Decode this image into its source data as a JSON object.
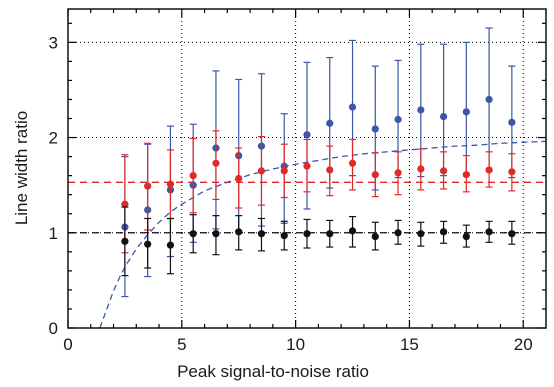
{
  "chart_data": {
    "type": "scatter",
    "title": "",
    "xlabel": "Peak signal-to-noise ratio",
    "ylabel": "Line width ratio",
    "xlim": [
      0,
      21
    ],
    "ylim": [
      0,
      3.35
    ],
    "x_ticks": [
      0,
      5,
      10,
      15,
      20
    ],
    "x_tick_labels": [
      "0",
      "5",
      "10",
      "15",
      "20"
    ],
    "y_ticks": [
      0,
      1,
      2,
      3
    ],
    "y_tick_labels": [
      "0",
      "1",
      "2",
      "3"
    ],
    "grid": true,
    "grid_style": "dotted, at major ticks",
    "legend": "none",
    "x": [
      2.5,
      3.5,
      4.5,
      5.5,
      6.5,
      7.5,
      8.5,
      9.5,
      10.5,
      11.5,
      12.5,
      13.5,
      14.5,
      15.5,
      16.5,
      17.5,
      18.5,
      19.5
    ],
    "series": [
      {
        "color": "#3a57a8",
        "marker": "circle",
        "values": [
          1.06,
          1.24,
          1.45,
          1.5,
          1.89,
          1.81,
          1.91,
          1.7,
          2.03,
          2.15,
          2.32,
          2.09,
          2.19,
          2.29,
          2.22,
          2.27,
          2.4,
          2.16
        ],
        "err_low": [
          0.73,
          0.7,
          0.7,
          0.6,
          0.85,
          0.79,
          0.84,
          0.6,
          0.78,
          0.68,
          0.72,
          0.64,
          0.61,
          0.7,
          0.62,
          0.65,
          0.75,
          0.58
        ],
        "err_high": [
          0.74,
          0.69,
          0.67,
          0.64,
          0.81,
          0.8,
          0.76,
          0.55,
          0.76,
          0.69,
          0.7,
          0.66,
          0.62,
          0.69,
          0.76,
          0.73,
          0.75,
          0.59
        ]
      },
      {
        "color": "#e02a2a",
        "marker": "circle",
        "values": [
          1.3,
          1.49,
          1.51,
          1.6,
          1.73,
          1.57,
          1.65,
          1.65,
          1.7,
          1.66,
          1.73,
          1.61,
          1.63,
          1.67,
          1.65,
          1.61,
          1.66,
          1.64
        ],
        "err_low": [
          0.51,
          0.46,
          0.36,
          0.39,
          0.38,
          0.31,
          0.36,
          0.28,
          0.27,
          0.27,
          0.28,
          0.23,
          0.23,
          0.22,
          0.19,
          0.18,
          0.18,
          0.2
        ],
        "err_high": [
          0.52,
          0.45,
          0.36,
          0.39,
          0.34,
          0.32,
          0.36,
          0.28,
          0.28,
          0.25,
          0.25,
          0.23,
          0.22,
          0.21,
          0.2,
          0.2,
          0.19,
          0.19
        ]
      },
      {
        "color": "#111111",
        "marker": "circle",
        "values": [
          0.91,
          0.88,
          0.87,
          0.99,
          0.99,
          1.01,
          0.99,
          0.97,
          0.99,
          0.99,
          1.02,
          0.96,
          1.0,
          0.99,
          1.01,
          0.96,
          1.01,
          0.99
        ],
        "err_low": [
          0.36,
          0.25,
          0.3,
          0.2,
          0.22,
          0.19,
          0.18,
          0.15,
          0.15,
          0.14,
          0.17,
          0.14,
          0.12,
          0.13,
          0.12,
          0.11,
          0.11,
          0.11
        ],
        "err_high": [
          0.36,
          0.27,
          0.28,
          0.2,
          0.19,
          0.17,
          0.16,
          0.15,
          0.15,
          0.14,
          0.15,
          0.15,
          0.13,
          0.12,
          0.11,
          0.12,
          0.11,
          0.13
        ]
      }
    ],
    "reference_lines": [
      {
        "orientation": "horizontal",
        "y": 1.0,
        "color": "#111111",
        "style": "dashed"
      },
      {
        "orientation": "horizontal",
        "y": 1.53,
        "color": "#e02a2a",
        "style": "dashed"
      }
    ],
    "curve": {
      "color": "#3a57a8",
      "style": "dashed",
      "points": [
        [
          1.4,
          0.0
        ],
        [
          1.6,
          0.13
        ],
        [
          1.8,
          0.26
        ],
        [
          2.0,
          0.39
        ],
        [
          2.3,
          0.55
        ],
        [
          2.6,
          0.68
        ],
        [
          3.0,
          0.83
        ],
        [
          3.5,
          0.98
        ],
        [
          4.0,
          1.11
        ],
        [
          4.5,
          1.22
        ],
        [
          5.0,
          1.3
        ],
        [
          6.0,
          1.44
        ],
        [
          7.0,
          1.53
        ],
        [
          8.0,
          1.61
        ],
        [
          9.0,
          1.67
        ],
        [
          10.0,
          1.72
        ],
        [
          11.0,
          1.76
        ],
        [
          12.0,
          1.8
        ],
        [
          13.0,
          1.83
        ],
        [
          14.0,
          1.85
        ],
        [
          15.0,
          1.87
        ],
        [
          16.0,
          1.89
        ],
        [
          17.0,
          1.91
        ],
        [
          18.0,
          1.92
        ],
        [
          19.0,
          1.94
        ],
        [
          20.0,
          1.95
        ],
        [
          21.0,
          1.96
        ]
      ]
    }
  }
}
